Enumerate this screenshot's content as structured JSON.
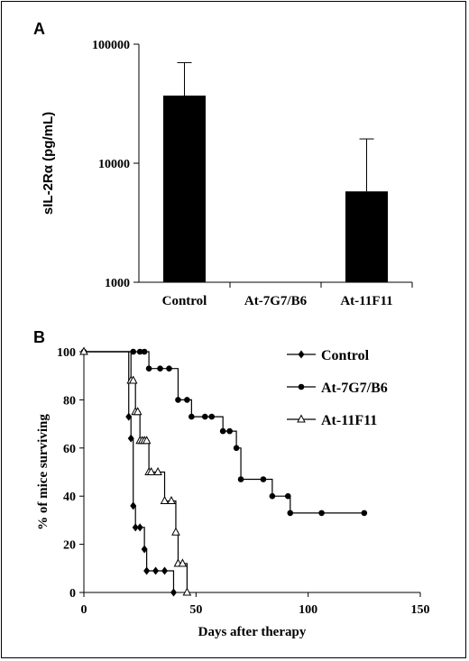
{
  "chart_data": [
    {
      "panel": "A",
      "type": "bar",
      "y_scale": "log",
      "ylabel": "sIL-2Rα (pg/mL)",
      "xlabel": "",
      "ylim": [
        1000,
        100000
      ],
      "yticks": [
        "1000",
        "10000",
        "100000"
      ],
      "categories": [
        "Control",
        "At-7G7/B6",
        "At-11F11"
      ],
      "values": [
        37000,
        null,
        5800
      ],
      "error_upper": [
        70000,
        null,
        16000
      ],
      "bar_color": "#000000"
    },
    {
      "panel": "B",
      "type": "line",
      "step": true,
      "ylabel": "% of mice surviving",
      "xlabel": "Days after therapy",
      "xlim": [
        0,
        150
      ],
      "ylim": [
        0,
        100
      ],
      "xticks": [
        "0",
        "50",
        "100",
        "150"
      ],
      "yticks": [
        "0",
        "20",
        "40",
        "60",
        "80",
        "100"
      ],
      "legend_position": "top-right",
      "series": [
        {
          "name": "Control",
          "marker": "diamond",
          "x": [
            0,
            20,
            21,
            22,
            23,
            25,
            27,
            28,
            32,
            36,
            40
          ],
          "y": [
            100,
            73,
            64,
            36,
            27,
            27,
            18,
            9,
            9,
            9,
            0
          ]
        },
        {
          "name": "At-7G7/B6",
          "marker": "circle",
          "x": [
            0,
            22,
            25,
            27,
            29,
            34,
            38,
            42,
            46,
            48,
            54,
            57,
            62,
            65,
            68,
            70,
            80,
            84,
            91,
            92,
            106,
            125
          ],
          "y": [
            100,
            100,
            100,
            100,
            93,
            93,
            93,
            80,
            80,
            73,
            73,
            73,
            67,
            67,
            60,
            47,
            47,
            40,
            40,
            33,
            33,
            33
          ]
        },
        {
          "name": "At-11F11",
          "marker": "triangle-open",
          "x": [
            0,
            21,
            22,
            23,
            24,
            25,
            26,
            27,
            28,
            29,
            30,
            33,
            36,
            39,
            41,
            42,
            44,
            46
          ],
          "y": [
            100,
            88,
            88,
            75,
            75,
            63,
            63,
            63,
            63,
            50,
            50,
            50,
            38,
            38,
            25,
            12,
            12,
            0
          ]
        }
      ]
    }
  ]
}
